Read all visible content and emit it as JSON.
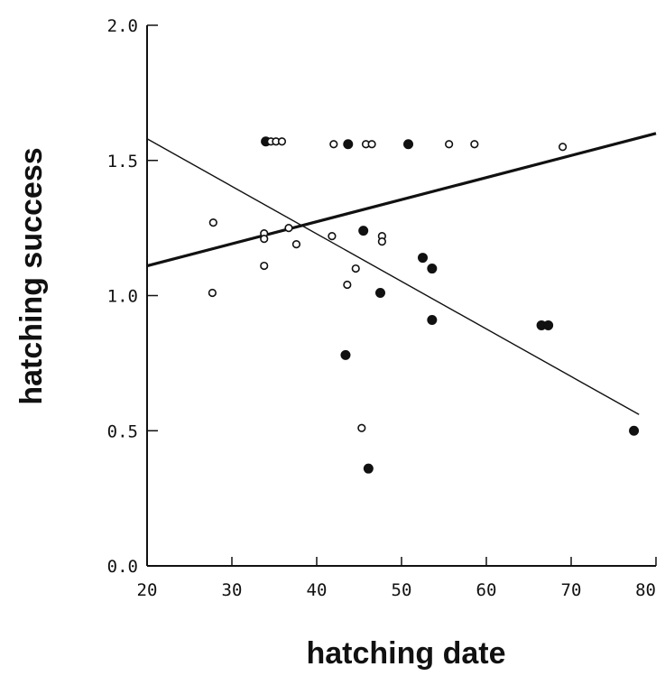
{
  "chart_data": {
    "type": "scatter",
    "title": "",
    "xlabel": "hatching date",
    "ylabel": "hatching success",
    "xlim": [
      20,
      80
    ],
    "ylim": [
      0.0,
      2.0
    ],
    "x_ticks": [
      "20",
      "30",
      "40",
      "50",
      "60",
      "70",
      "80"
    ],
    "y_ticks": [
      "0.0",
      "0.5",
      "1.0",
      "1.5",
      "2.0"
    ],
    "grid": false,
    "legend": "none",
    "series": [
      {
        "marker": "filled-circle",
        "color": "#111111",
        "points": [
          [
            34,
            1.57
          ],
          [
            43.7,
            1.56
          ],
          [
            50.8,
            1.56
          ],
          [
            45.5,
            1.24
          ],
          [
            52.5,
            1.14
          ],
          [
            53.6,
            1.1
          ],
          [
            47.5,
            1.01
          ],
          [
            53.6,
            0.91
          ],
          [
            66.5,
            0.89
          ],
          [
            67.3,
            0.89
          ],
          [
            43.4,
            0.78
          ],
          [
            46.1,
            0.36
          ],
          [
            77.4,
            0.5
          ]
        ]
      },
      {
        "marker": "open-circle",
        "color": "#111111",
        "points": [
          [
            34.6,
            1.57
          ],
          [
            35.2,
            1.57
          ],
          [
            35.9,
            1.57
          ],
          [
            42.0,
            1.56
          ],
          [
            45.8,
            1.56
          ],
          [
            46.5,
            1.56
          ],
          [
            55.6,
            1.56
          ],
          [
            58.6,
            1.56
          ],
          [
            69.0,
            1.55
          ],
          [
            27.8,
            1.27
          ],
          [
            33.8,
            1.23
          ],
          [
            33.8,
            1.21
          ],
          [
            36.7,
            1.25
          ],
          [
            37.6,
            1.19
          ],
          [
            41.8,
            1.22
          ],
          [
            47.7,
            1.22
          ],
          [
            47.7,
            1.2
          ],
          [
            44.6,
            1.1
          ],
          [
            33.8,
            1.11
          ],
          [
            43.6,
            1.04
          ],
          [
            27.7,
            1.01
          ],
          [
            45.3,
            0.51
          ]
        ]
      }
    ],
    "lines": [
      {
        "style": "thick",
        "x": [
          20,
          80
        ],
        "y": [
          1.11,
          1.6
        ]
      },
      {
        "style": "thin",
        "x": [
          20,
          78
        ],
        "y": [
          1.58,
          0.56
        ]
      }
    ]
  }
}
